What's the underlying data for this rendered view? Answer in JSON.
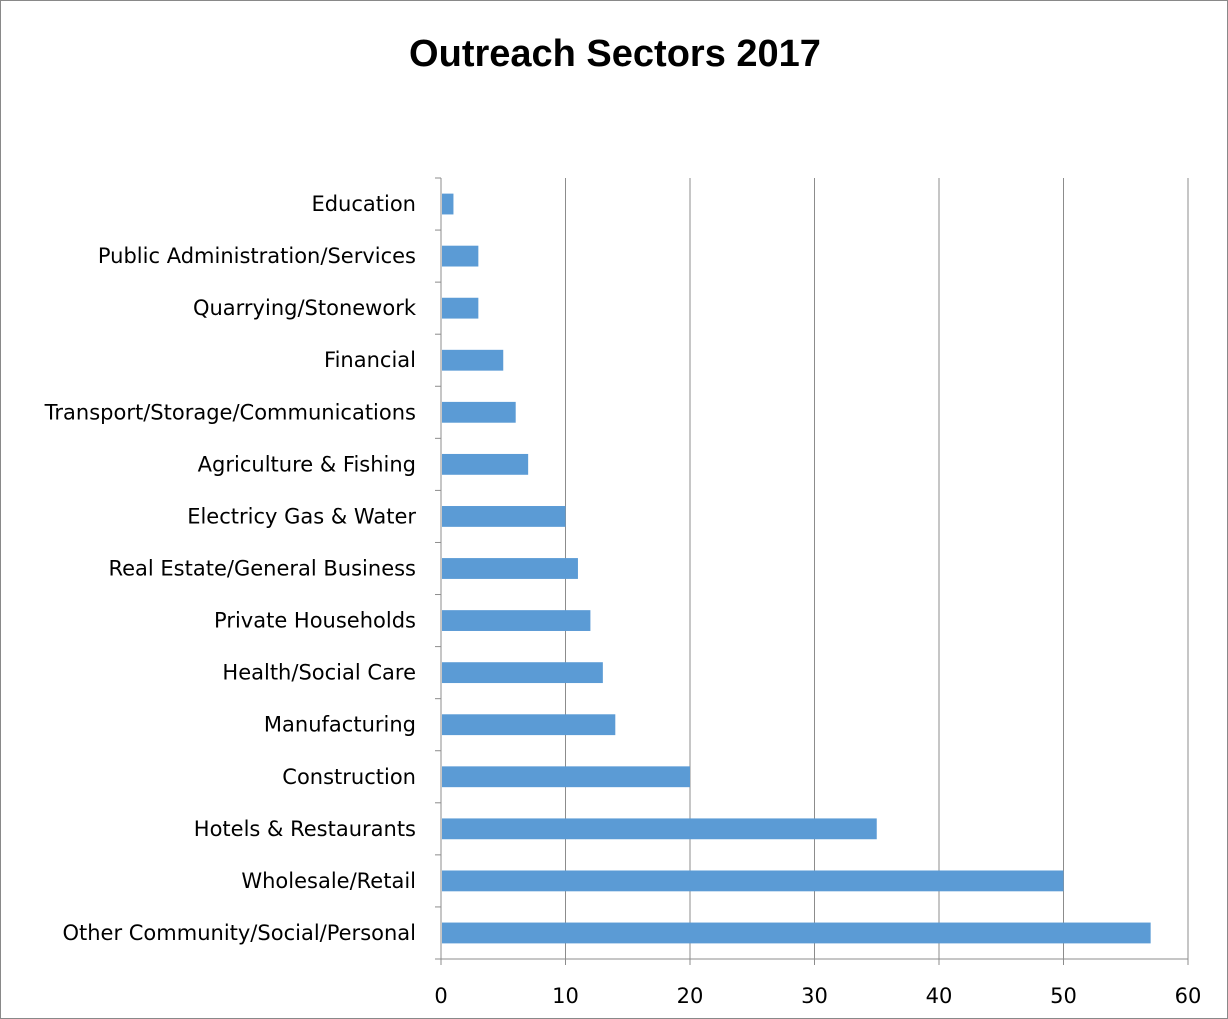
{
  "chart_data": {
    "type": "bar",
    "orientation": "horizontal",
    "title": "Outreach Sectors 2017",
    "xlabel": "",
    "ylabel": "",
    "xlim": [
      0,
      60
    ],
    "x_ticks": [
      "0",
      "10",
      "20",
      "30",
      "40",
      "50",
      "60"
    ],
    "grid": "vertical",
    "legend": "none",
    "bar_color": "#5b9bd5",
    "categories": [
      "Education",
      "Public Administration/Services",
      "Quarrying/Stonework",
      "Financial",
      "Transport/Storage/Communications",
      "Agriculture & Fishing",
      "Electricy Gas & Water",
      "Real Estate/General Business",
      "Private Households",
      "Health/Social Care",
      "Manufacturing",
      "Construction",
      "Hotels & Restaurants",
      "Wholesale/Retail",
      "Other Community/Social/Personal"
    ],
    "values": [
      1,
      3,
      3,
      5,
      6,
      7,
      10,
      11,
      12,
      13,
      14,
      20,
      35,
      50,
      57
    ]
  }
}
